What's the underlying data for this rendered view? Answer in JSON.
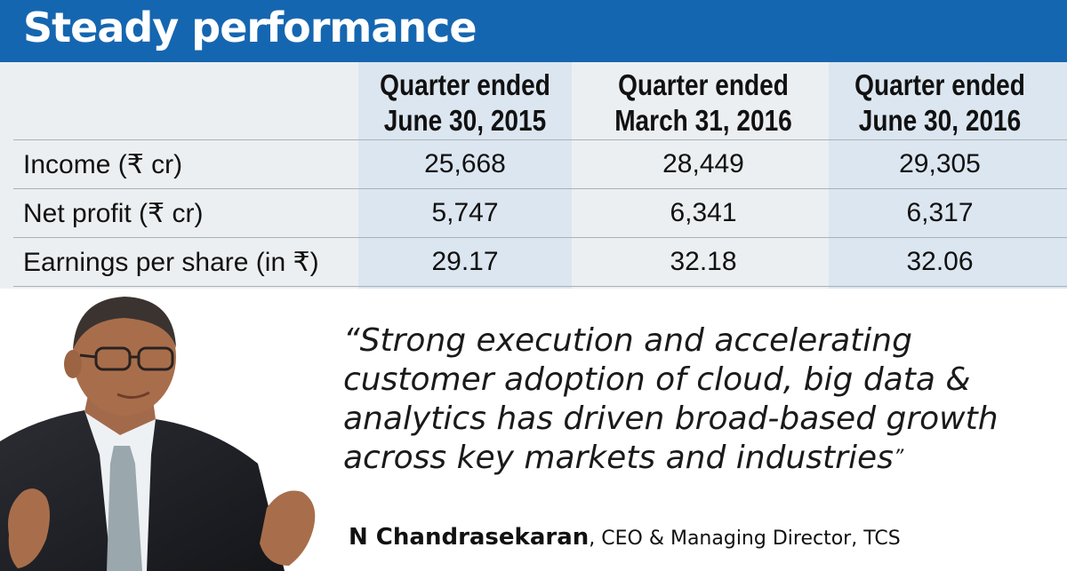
{
  "title": "Steady performance",
  "table": {
    "headers": [
      [
        "Quarter ended",
        "June 30, 2015"
      ],
      [
        "Quarter ended",
        "March 31, 2016"
      ],
      [
        "Quarter ended",
        "June 30, 2016"
      ]
    ],
    "rows": [
      {
        "label": "Income (₹ cr)",
        "values": [
          "25,668",
          "28,449",
          "29,305"
        ]
      },
      {
        "label": "Net profit (₹ cr)",
        "values": [
          "5,747",
          "6,341",
          "6,317"
        ]
      },
      {
        "label": "Earnings per share (in ₹)",
        "values": [
          "29.17",
          "32.18",
          "32.06"
        ]
      }
    ]
  },
  "quote": {
    "open_mark": "“",
    "lines": [
      "Strong execution and accelerating",
      "customer adoption of cloud, big data &",
      "analytics has driven broad-based growth",
      "across key markets and industries"
    ],
    "close_mark": "”"
  },
  "attribution": {
    "name": "N Chandrasekaran",
    "role": ", CEO & Managing Director, TCS"
  },
  "colors": {
    "banner": "#1566b0",
    "table_bg": "#eceff1",
    "column_shade": "#dce6f0"
  }
}
